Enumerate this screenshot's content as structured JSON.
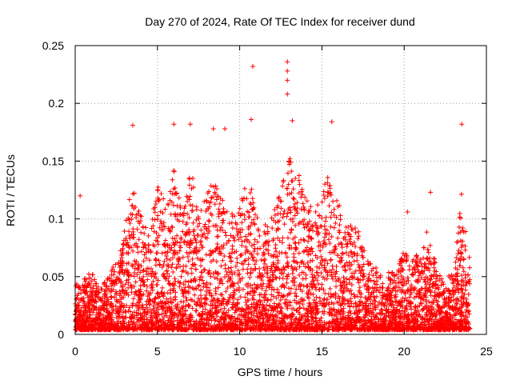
{
  "chart_data": {
    "type": "scatter",
    "title": "Day 270 of 2024, Rate Of TEC Index for receiver dund",
    "xlabel": "GPS time / hours",
    "ylabel": "ROTI / TECUs",
    "xlim": [
      0,
      25
    ],
    "ylim": [
      0,
      0.25
    ],
    "xticks": [
      "0",
      "5",
      "10",
      "15",
      "20",
      "25"
    ],
    "yticks": [
      "0",
      "0.05",
      "0.1",
      "0.15",
      "0.2",
      "0.25"
    ],
    "grid": true,
    "marker": "plus",
    "color": "#ff0000",
    "notable_points": [
      {
        "x": 10.8,
        "y": 0.232
      },
      {
        "x": 12.9,
        "y": 0.236
      },
      {
        "x": 12.9,
        "y": 0.228
      },
      {
        "x": 12.9,
        "y": 0.22
      },
      {
        "x": 12.9,
        "y": 0.208
      },
      {
        "x": 10.7,
        "y": 0.186
      },
      {
        "x": 13.2,
        "y": 0.185
      },
      {
        "x": 3.5,
        "y": 0.181
      },
      {
        "x": 7.0,
        "y": 0.182
      },
      {
        "x": 15.6,
        "y": 0.184
      },
      {
        "x": 23.5,
        "y": 0.182
      },
      {
        "x": 6.0,
        "y": 0.182
      },
      {
        "x": 8.4,
        "y": 0.178
      },
      {
        "x": 9.1,
        "y": 0.178
      },
      {
        "x": 0.3,
        "y": 0.12
      },
      {
        "x": 21.6,
        "y": 0.123
      },
      {
        "x": 20.2,
        "y": 0.106
      }
    ],
    "envelope": {
      "hours": [
        0,
        0.5,
        1,
        1.5,
        2,
        2.5,
        3,
        3.5,
        4,
        4.5,
        5,
        5.5,
        6,
        6.5,
        7,
        7.5,
        8,
        8.5,
        9,
        9.5,
        10,
        10.5,
        11,
        11.5,
        12,
        12.5,
        13,
        13.5,
        14,
        14.5,
        15,
        15.5,
        16,
        16.5,
        17,
        17.5,
        18,
        18.5,
        19,
        19.5,
        20,
        20.5,
        21,
        21.5,
        22,
        22.5,
        23,
        23.5,
        24
      ],
      "typical_max": [
        0.04,
        0.045,
        0.05,
        0.035,
        0.05,
        0.06,
        0.09,
        0.13,
        0.1,
        0.08,
        0.13,
        0.11,
        0.14,
        0.1,
        0.14,
        0.11,
        0.12,
        0.13,
        0.12,
        0.1,
        0.11,
        0.14,
        0.1,
        0.09,
        0.1,
        0.12,
        0.15,
        0.14,
        0.12,
        0.1,
        0.12,
        0.14,
        0.11,
        0.09,
        0.1,
        0.07,
        0.06,
        0.05,
        0.05,
        0.05,
        0.07,
        0.06,
        0.07,
        0.09,
        0.05,
        0.045,
        0.05,
        0.12,
        0.06
      ]
    }
  }
}
